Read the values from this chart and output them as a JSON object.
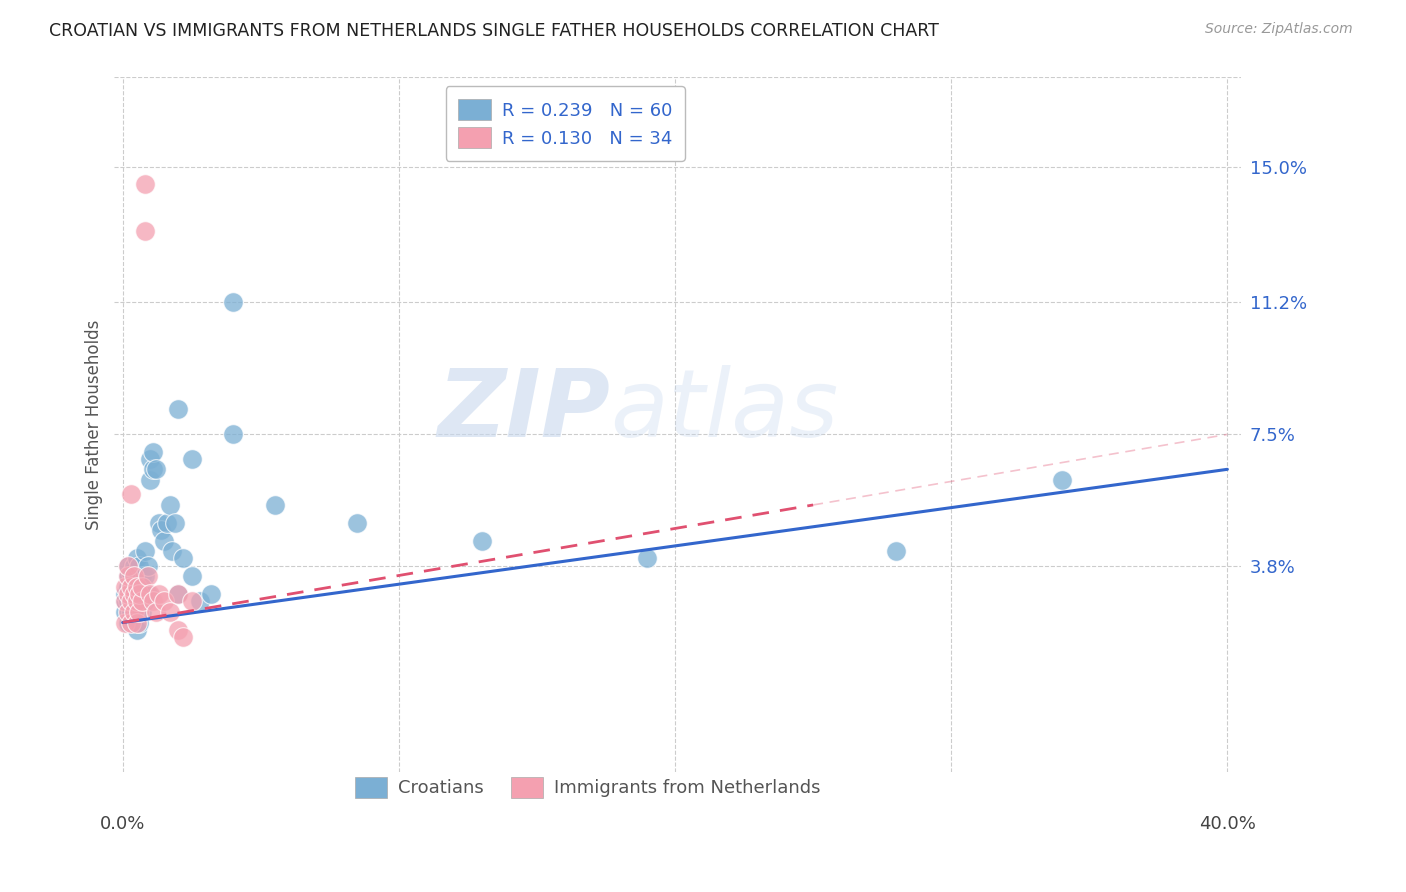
{
  "title": "CROATIAN VS IMMIGRANTS FROM NETHERLANDS SINGLE FATHER HOUSEHOLDS CORRELATION CHART",
  "source": "Source: ZipAtlas.com",
  "ylabel": "Single Father Households",
  "ytick_labels": [
    "15.0%",
    "11.2%",
    "7.5%",
    "3.8%"
  ],
  "ytick_values": [
    0.15,
    0.112,
    0.075,
    0.038
  ],
  "xlim": [
    -0.003,
    0.405
  ],
  "ylim": [
    -0.02,
    0.175
  ],
  "blue_color": "#7BAFD4",
  "pink_color": "#F4A0B0",
  "blue_line_color": "#3366CC",
  "pink_line_color": "#E05070",
  "label_color": "#3366CC",
  "R_blue": 0.239,
  "N_blue": 60,
  "R_pink": 0.13,
  "N_pink": 34,
  "watermark_zip": "ZIP",
  "watermark_atlas": "atlas",
  "grid_color": "#CCCCCC",
  "blue_x": [
    0.001,
    0.001,
    0.001,
    0.002,
    0.002,
    0.002,
    0.002,
    0.002,
    0.003,
    0.003,
    0.003,
    0.003,
    0.004,
    0.004,
    0.004,
    0.004,
    0.005,
    0.005,
    0.005,
    0.005,
    0.005,
    0.006,
    0.006,
    0.006,
    0.006,
    0.007,
    0.007,
    0.007,
    0.008,
    0.008,
    0.008,
    0.009,
    0.009,
    0.01,
    0.01,
    0.011,
    0.011,
    0.012,
    0.013,
    0.014,
    0.015,
    0.016,
    0.017,
    0.018,
    0.019,
    0.02,
    0.022,
    0.025,
    0.028,
    0.032,
    0.02,
    0.025,
    0.04,
    0.055,
    0.085,
    0.13,
    0.19,
    0.28,
    0.34,
    0.04
  ],
  "blue_y": [
    0.025,
    0.028,
    0.03,
    0.022,
    0.028,
    0.032,
    0.035,
    0.038,
    0.025,
    0.03,
    0.033,
    0.036,
    0.022,
    0.028,
    0.032,
    0.038,
    0.02,
    0.025,
    0.03,
    0.035,
    0.04,
    0.022,
    0.028,
    0.033,
    0.038,
    0.025,
    0.03,
    0.035,
    0.028,
    0.035,
    0.042,
    0.03,
    0.038,
    0.062,
    0.068,
    0.065,
    0.07,
    0.065,
    0.05,
    0.048,
    0.045,
    0.05,
    0.055,
    0.042,
    0.05,
    0.03,
    0.04,
    0.035,
    0.028,
    0.03,
    0.082,
    0.068,
    0.075,
    0.055,
    0.05,
    0.045,
    0.04,
    0.042,
    0.062,
    0.112
  ],
  "pink_x": [
    0.001,
    0.001,
    0.001,
    0.002,
    0.002,
    0.002,
    0.002,
    0.003,
    0.003,
    0.003,
    0.003,
    0.004,
    0.004,
    0.004,
    0.005,
    0.005,
    0.005,
    0.006,
    0.006,
    0.007,
    0.007,
    0.008,
    0.008,
    0.009,
    0.01,
    0.011,
    0.012,
    0.013,
    0.015,
    0.017,
    0.02,
    0.025,
    0.02,
    0.022
  ],
  "pink_y": [
    0.022,
    0.028,
    0.032,
    0.025,
    0.03,
    0.035,
    0.038,
    0.022,
    0.028,
    0.032,
    0.058,
    0.025,
    0.03,
    0.035,
    0.022,
    0.028,
    0.032,
    0.025,
    0.03,
    0.028,
    0.032,
    0.145,
    0.132,
    0.035,
    0.03,
    0.028,
    0.025,
    0.03,
    0.028,
    0.025,
    0.03,
    0.028,
    0.02,
    0.018
  ],
  "blue_line_x": [
    0.0,
    0.4
  ],
  "blue_line_y": [
    0.022,
    0.065
  ],
  "pink_line_x": [
    0.0,
    0.25
  ],
  "pink_line_y": [
    0.022,
    0.055
  ]
}
